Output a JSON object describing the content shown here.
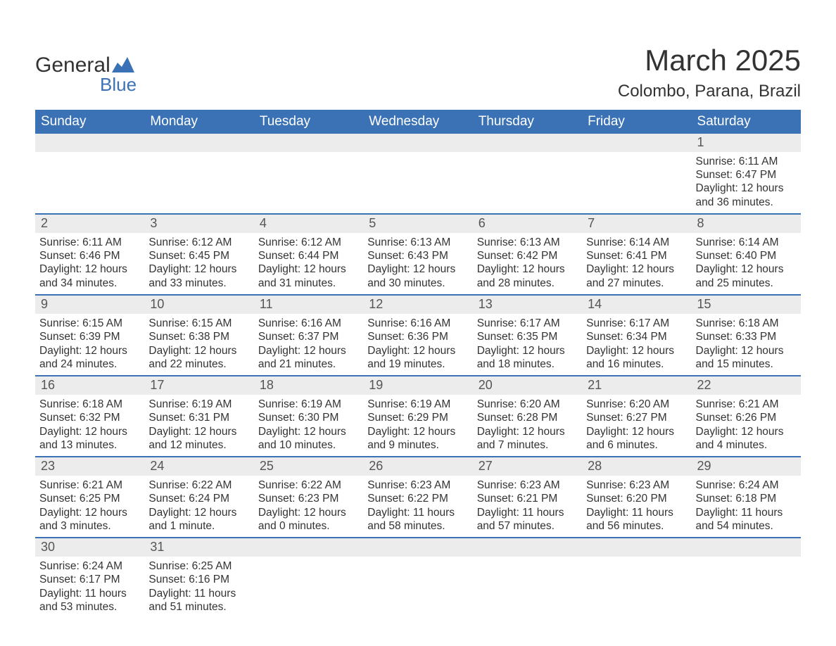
{
  "brand": {
    "name_part1": "General",
    "name_part2": "Blue"
  },
  "title": "March 2025",
  "location": "Colombo, Parana, Brazil",
  "colors": {
    "header_bg": "#3a72b5",
    "header_text": "#ffffff",
    "daynum_bg": "#ececec",
    "border": "#3a72b5",
    "text": "#333333",
    "background": "#ffffff"
  },
  "day_headers": [
    "Sunday",
    "Monday",
    "Tuesday",
    "Wednesday",
    "Thursday",
    "Friday",
    "Saturday"
  ],
  "weeks": [
    [
      {
        "n": null
      },
      {
        "n": null
      },
      {
        "n": null
      },
      {
        "n": null
      },
      {
        "n": null
      },
      {
        "n": null
      },
      {
        "n": "1",
        "sunrise": "Sunrise: 6:11 AM",
        "sunset": "Sunset: 6:47 PM",
        "day1": "Daylight: 12 hours",
        "day2": "and 36 minutes."
      }
    ],
    [
      {
        "n": "2",
        "sunrise": "Sunrise: 6:11 AM",
        "sunset": "Sunset: 6:46 PM",
        "day1": "Daylight: 12 hours",
        "day2": "and 34 minutes."
      },
      {
        "n": "3",
        "sunrise": "Sunrise: 6:12 AM",
        "sunset": "Sunset: 6:45 PM",
        "day1": "Daylight: 12 hours",
        "day2": "and 33 minutes."
      },
      {
        "n": "4",
        "sunrise": "Sunrise: 6:12 AM",
        "sunset": "Sunset: 6:44 PM",
        "day1": "Daylight: 12 hours",
        "day2": "and 31 minutes."
      },
      {
        "n": "5",
        "sunrise": "Sunrise: 6:13 AM",
        "sunset": "Sunset: 6:43 PM",
        "day1": "Daylight: 12 hours",
        "day2": "and 30 minutes."
      },
      {
        "n": "6",
        "sunrise": "Sunrise: 6:13 AM",
        "sunset": "Sunset: 6:42 PM",
        "day1": "Daylight: 12 hours",
        "day2": "and 28 minutes."
      },
      {
        "n": "7",
        "sunrise": "Sunrise: 6:14 AM",
        "sunset": "Sunset: 6:41 PM",
        "day1": "Daylight: 12 hours",
        "day2": "and 27 minutes."
      },
      {
        "n": "8",
        "sunrise": "Sunrise: 6:14 AM",
        "sunset": "Sunset: 6:40 PM",
        "day1": "Daylight: 12 hours",
        "day2": "and 25 minutes."
      }
    ],
    [
      {
        "n": "9",
        "sunrise": "Sunrise: 6:15 AM",
        "sunset": "Sunset: 6:39 PM",
        "day1": "Daylight: 12 hours",
        "day2": "and 24 minutes."
      },
      {
        "n": "10",
        "sunrise": "Sunrise: 6:15 AM",
        "sunset": "Sunset: 6:38 PM",
        "day1": "Daylight: 12 hours",
        "day2": "and 22 minutes."
      },
      {
        "n": "11",
        "sunrise": "Sunrise: 6:16 AM",
        "sunset": "Sunset: 6:37 PM",
        "day1": "Daylight: 12 hours",
        "day2": "and 21 minutes."
      },
      {
        "n": "12",
        "sunrise": "Sunrise: 6:16 AM",
        "sunset": "Sunset: 6:36 PM",
        "day1": "Daylight: 12 hours",
        "day2": "and 19 minutes."
      },
      {
        "n": "13",
        "sunrise": "Sunrise: 6:17 AM",
        "sunset": "Sunset: 6:35 PM",
        "day1": "Daylight: 12 hours",
        "day2": "and 18 minutes."
      },
      {
        "n": "14",
        "sunrise": "Sunrise: 6:17 AM",
        "sunset": "Sunset: 6:34 PM",
        "day1": "Daylight: 12 hours",
        "day2": "and 16 minutes."
      },
      {
        "n": "15",
        "sunrise": "Sunrise: 6:18 AM",
        "sunset": "Sunset: 6:33 PM",
        "day1": "Daylight: 12 hours",
        "day2": "and 15 minutes."
      }
    ],
    [
      {
        "n": "16",
        "sunrise": "Sunrise: 6:18 AM",
        "sunset": "Sunset: 6:32 PM",
        "day1": "Daylight: 12 hours",
        "day2": "and 13 minutes."
      },
      {
        "n": "17",
        "sunrise": "Sunrise: 6:19 AM",
        "sunset": "Sunset: 6:31 PM",
        "day1": "Daylight: 12 hours",
        "day2": "and 12 minutes."
      },
      {
        "n": "18",
        "sunrise": "Sunrise: 6:19 AM",
        "sunset": "Sunset: 6:30 PM",
        "day1": "Daylight: 12 hours",
        "day2": "and 10 minutes."
      },
      {
        "n": "19",
        "sunrise": "Sunrise: 6:19 AM",
        "sunset": "Sunset: 6:29 PM",
        "day1": "Daylight: 12 hours",
        "day2": "and 9 minutes."
      },
      {
        "n": "20",
        "sunrise": "Sunrise: 6:20 AM",
        "sunset": "Sunset: 6:28 PM",
        "day1": "Daylight: 12 hours",
        "day2": "and 7 minutes."
      },
      {
        "n": "21",
        "sunrise": "Sunrise: 6:20 AM",
        "sunset": "Sunset: 6:27 PM",
        "day1": "Daylight: 12 hours",
        "day2": "and 6 minutes."
      },
      {
        "n": "22",
        "sunrise": "Sunrise: 6:21 AM",
        "sunset": "Sunset: 6:26 PM",
        "day1": "Daylight: 12 hours",
        "day2": "and 4 minutes."
      }
    ],
    [
      {
        "n": "23",
        "sunrise": "Sunrise: 6:21 AM",
        "sunset": "Sunset: 6:25 PM",
        "day1": "Daylight: 12 hours",
        "day2": "and 3 minutes."
      },
      {
        "n": "24",
        "sunrise": "Sunrise: 6:22 AM",
        "sunset": "Sunset: 6:24 PM",
        "day1": "Daylight: 12 hours",
        "day2": "and 1 minute."
      },
      {
        "n": "25",
        "sunrise": "Sunrise: 6:22 AM",
        "sunset": "Sunset: 6:23 PM",
        "day1": "Daylight: 12 hours",
        "day2": "and 0 minutes."
      },
      {
        "n": "26",
        "sunrise": "Sunrise: 6:23 AM",
        "sunset": "Sunset: 6:22 PM",
        "day1": "Daylight: 11 hours",
        "day2": "and 58 minutes."
      },
      {
        "n": "27",
        "sunrise": "Sunrise: 6:23 AM",
        "sunset": "Sunset: 6:21 PM",
        "day1": "Daylight: 11 hours",
        "day2": "and 57 minutes."
      },
      {
        "n": "28",
        "sunrise": "Sunrise: 6:23 AM",
        "sunset": "Sunset: 6:20 PM",
        "day1": "Daylight: 11 hours",
        "day2": "and 56 minutes."
      },
      {
        "n": "29",
        "sunrise": "Sunrise: 6:24 AM",
        "sunset": "Sunset: 6:18 PM",
        "day1": "Daylight: 11 hours",
        "day2": "and 54 minutes."
      }
    ],
    [
      {
        "n": "30",
        "sunrise": "Sunrise: 6:24 AM",
        "sunset": "Sunset: 6:17 PM",
        "day1": "Daylight: 11 hours",
        "day2": "and 53 minutes."
      },
      {
        "n": "31",
        "sunrise": "Sunrise: 6:25 AM",
        "sunset": "Sunset: 6:16 PM",
        "day1": "Daylight: 11 hours",
        "day2": "and 51 minutes."
      },
      {
        "n": null
      },
      {
        "n": null
      },
      {
        "n": null
      },
      {
        "n": null
      },
      {
        "n": null
      }
    ]
  ]
}
